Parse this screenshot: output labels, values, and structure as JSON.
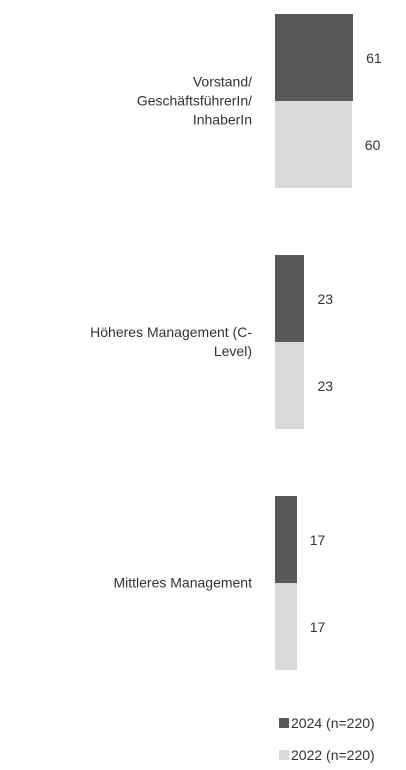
{
  "chart_data": {
    "type": "bar",
    "orientation": "horizontal",
    "categories": [
      "Vorstand/\nGeschäftsführerIn/\nInhaberIn",
      "Höheres Management (C-\nLevel)",
      "Mittleres Management"
    ],
    "series": [
      {
        "name": "2024 (n=220)",
        "color": "#595959",
        "values": [
          61,
          23,
          17
        ]
      },
      {
        "name": "2022 (n=220)",
        "color": "#d9d9d9",
        "values": [
          60,
          23,
          17
        ]
      }
    ]
  }
}
